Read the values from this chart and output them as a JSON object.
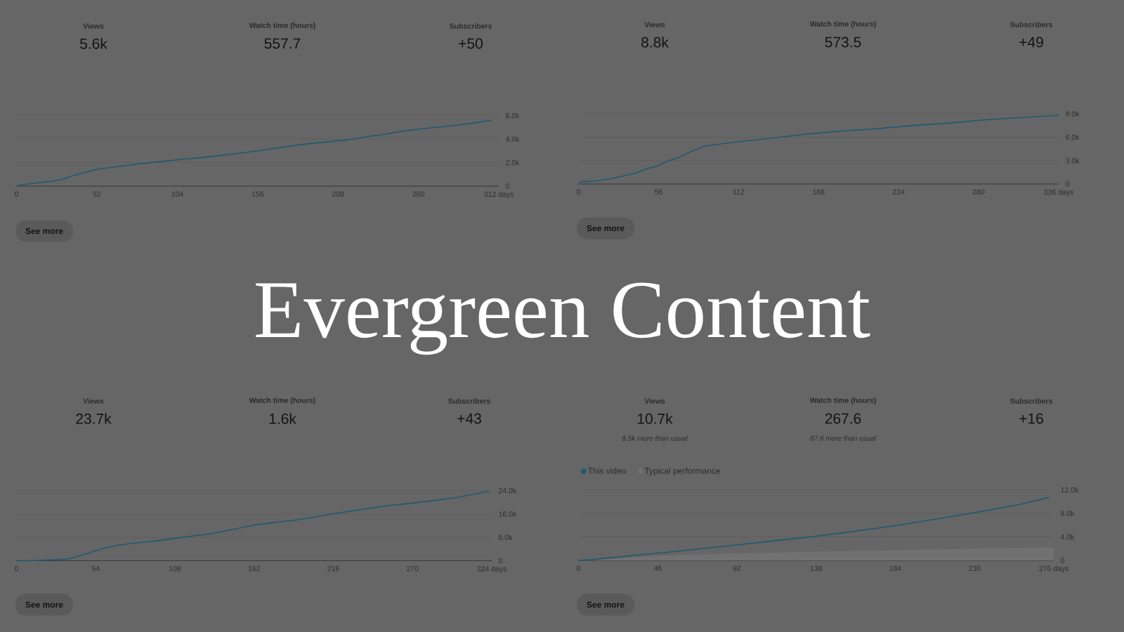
{
  "chart_data": [
    {
      "type": "other",
      "title": "Evergreen Content"
    },
    {
      "type": "line",
      "color": "#1f5a70",
      "x": [
        0,
        3,
        12,
        23,
        30,
        37,
        45,
        53,
        62,
        80,
        102,
        125,
        148,
        170,
        182,
        204,
        215,
        227,
        238,
        249,
        261,
        272,
        283,
        295,
        307
      ],
      "values": [
        0,
        100,
        250,
        400,
        600,
        900,
        1200,
        1450,
        1600,
        1900,
        2200,
        2500,
        2850,
        3250,
        3500,
        3800,
        3950,
        4200,
        4400,
        4650,
        4850,
        5000,
        5150,
        5350,
        5600
      ],
      "xlim": [
        0,
        312
      ],
      "xticks": [
        0,
        52,
        104,
        156,
        208,
        260,
        {
          "value": 312,
          "label": "312 days"
        }
      ],
      "ylim": [
        0,
        6000
      ],
      "yticks": [
        0,
        {
          "value": 2000,
          "label": "2.0k"
        },
        {
          "value": 4000,
          "label": "4.0k"
        },
        {
          "value": 6000,
          "label": "6.0k"
        }
      ],
      "grid": "y",
      "annotations": [
        "Views",
        "5.6k",
        "Watch time (hours)",
        "557.7",
        "Subscribers",
        "+50",
        "See more"
      ]
    },
    {
      "type": "line",
      "color": "#1f5a70",
      "x": [
        0,
        2,
        6,
        13,
        23,
        33,
        40,
        47,
        55,
        62,
        70,
        77,
        87,
        94,
        111,
        136,
        160,
        185,
        210,
        234,
        259,
        283,
        308,
        336
      ],
      "values": [
        0,
        300,
        300,
        400,
        700,
        1100,
        1400,
        1900,
        2300,
        2900,
        3400,
        4000,
        4800,
        5000,
        5400,
        5900,
        6400,
        6800,
        7100,
        7500,
        7800,
        8200,
        8500,
        8800
      ],
      "xlim": [
        0,
        336
      ],
      "xticks": [
        0,
        56,
        112,
        168,
        224,
        280,
        {
          "value": 336,
          "label": "336 days"
        }
      ],
      "ylim": [
        0,
        9000
      ],
      "yticks": [
        0,
        {
          "value": 3000,
          "label": "3.0k"
        },
        {
          "value": 6000,
          "label": "6.0k"
        },
        {
          "value": 9000,
          "label": "9.0k"
        }
      ],
      "grid": "y",
      "annotations": [
        "Views",
        "8.8k",
        "Watch time (hours)",
        "573.5",
        "Subscribers",
        "+49",
        "See more"
      ]
    },
    {
      "type": "line",
      "color": "#1f5a70",
      "x": [
        0,
        13,
        34,
        40,
        49,
        58,
        70,
        80,
        96,
        113,
        132,
        144,
        156,
        162,
        192,
        216,
        240,
        252,
        270,
        288,
        300,
        322
      ],
      "values": [
        0,
        100,
        500,
        1200,
        2600,
        4100,
        5400,
        6000,
        6800,
        8000,
        9200,
        10400,
        11600,
        12200,
        14000,
        16000,
        17900,
        18700,
        19700,
        20800,
        21600,
        23700
      ],
      "xlim": [
        0,
        324
      ],
      "xticks": [
        0,
        54,
        108,
        162,
        216,
        270,
        {
          "value": 324,
          "label": "324 days"
        }
      ],
      "ylim": [
        0,
        24000
      ],
      "yticks": [
        0,
        {
          "value": 8000,
          "label": "8.0k"
        },
        {
          "value": 16000,
          "label": "16.0k"
        },
        {
          "value": 24000,
          "label": "24.0k"
        }
      ],
      "grid": "y",
      "annotations": [
        "Views",
        "23.7k",
        "Watch time (hours)",
        "1.6k",
        "Subscribers",
        "+43",
        "See more"
      ]
    },
    {
      "type": "line",
      "series": [
        {
          "name": "This video",
          "color": "#1f5a70",
          "x": [
            0,
            7,
            17,
            31,
            45,
            62,
            91,
            113,
            138,
            154,
            174,
            184,
            205,
            230,
            256,
            273
          ],
          "values": [
            0,
            100,
            400,
            800,
            1200,
            1700,
            2600,
            3300,
            4100,
            4700,
            5500,
            5900,
            6900,
            8100,
            9500,
            10700
          ]
        },
        {
          "name": "Typical performance",
          "type": "area",
          "color": "#717171",
          "x": [
            0,
            10,
            46,
            92,
            138,
            184,
            230,
            276
          ],
          "values": [
            0,
            100,
            800,
            1200,
            1500,
            1700,
            2000,
            2200
          ]
        }
      ],
      "xlim": [
        0,
        276
      ],
      "xticks": [
        0,
        46,
        92,
        138,
        184,
        230,
        {
          "value": 276,
          "label": "276 days"
        }
      ],
      "ylim": [
        0,
        12000
      ],
      "yticks": [
        0,
        {
          "value": 4000,
          "label": "4.0k"
        },
        {
          "value": 8000,
          "label": "8.0k"
        },
        {
          "value": 12000,
          "label": "12.0k"
        }
      ],
      "grid": "y",
      "legend": "top left",
      "annotations": [
        "Views",
        "10.7k",
        "8.5k more than usual",
        "Watch time (hours)",
        "267.6",
        "87.6 more than usual",
        "Subscribers",
        "+16",
        "See more"
      ]
    }
  ]
}
